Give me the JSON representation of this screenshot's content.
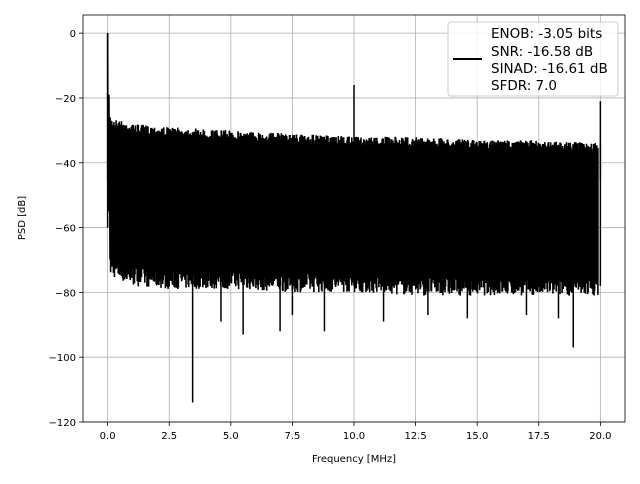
{
  "chart_data": {
    "type": "line",
    "xlabel": "Frequency [MHz]",
    "ylabel": "PSD [dB]",
    "xlim": [
      -1,
      21
    ],
    "ylim": [
      -120,
      5.6
    ],
    "xticks": [
      "0.0",
      "2.5",
      "5.0",
      "7.5",
      "10.0",
      "12.5",
      "15.0",
      "17.5",
      "20.0"
    ],
    "yticks": [
      "0",
      "−20",
      "−40",
      "−60",
      "−80",
      "−100",
      "−120"
    ],
    "xtick_values": [
      0,
      2.5,
      5,
      7.5,
      10,
      12.5,
      15,
      17.5,
      20
    ],
    "ytick_values": [
      0,
      -20,
      -40,
      -60,
      -80,
      -100,
      -120
    ],
    "grid": true,
    "line_color": "#000000",
    "legend": {
      "placement": "top-right",
      "entries": [
        "ENOB: -3.05 bits",
        "SNR: -16.58 dB",
        "SINAD: -16.61 dB",
        "SFDR: 7.0"
      ]
    },
    "noise_envelope": {
      "x": [
        0.1,
        1,
        2.5,
        5,
        7.5,
        10,
        12.5,
        15,
        17.5,
        20
      ],
      "upper": [
        -26,
        -28,
        -29,
        -30,
        -31,
        -32,
        -32,
        -33,
        -33,
        -34
      ],
      "lower": [
        -72,
        -75,
        -76,
        -76,
        -77,
        -77,
        -78,
        -78,
        -78,
        -78
      ]
    },
    "peaks": [
      {
        "x": 0.0,
        "y": 0
      },
      {
        "x": 0.05,
        "y": -19
      },
      {
        "x": 10.0,
        "y": -16
      },
      {
        "x": 20.0,
        "y": -21
      }
    ],
    "dips": [
      {
        "x": 3.45,
        "y": -114
      },
      {
        "x": 5.5,
        "y": -93
      },
      {
        "x": 7.0,
        "y": -92
      },
      {
        "x": 8.8,
        "y": -92
      },
      {
        "x": 4.6,
        "y": -89
      },
      {
        "x": 11.2,
        "y": -89
      },
      {
        "x": 14.6,
        "y": -88
      },
      {
        "x": 18.3,
        "y": -88
      },
      {
        "x": 18.9,
        "y": -97
      },
      {
        "x": 13.0,
        "y": -87
      },
      {
        "x": 7.5,
        "y": -87
      },
      {
        "x": 17.0,
        "y": -87
      }
    ]
  }
}
